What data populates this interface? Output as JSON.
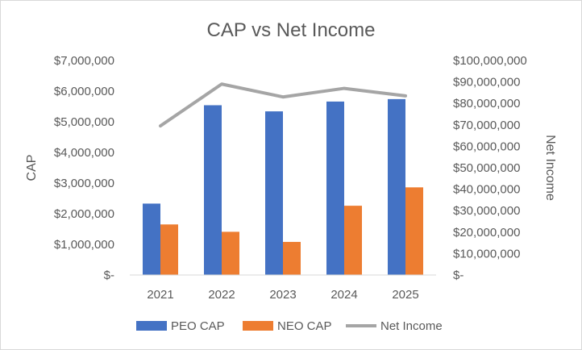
{
  "chart_data": {
    "type": "bar",
    "title": "CAP vs Net Income",
    "categories": [
      "2021",
      "2022",
      "2023",
      "2024",
      "2025"
    ],
    "series": [
      {
        "name": "PEO CAP",
        "kind": "bar",
        "axis": "left",
        "color": "#4472C4",
        "values": [
          2330000,
          5540000,
          5340000,
          5660000,
          5740000
        ]
      },
      {
        "name": "NEO CAP",
        "kind": "bar",
        "axis": "left",
        "color": "#ED7D31",
        "values": [
          1650000,
          1410000,
          1080000,
          2260000,
          2860000
        ]
      },
      {
        "name": "Net Income",
        "kind": "line",
        "axis": "right",
        "color": "#A5A5A5",
        "values": [
          69500000,
          89000000,
          83000000,
          87000000,
          83500000
        ]
      }
    ],
    "ylabel": "CAP",
    "y2label": "Net Income",
    "ylim": [
      0,
      7000000
    ],
    "y2lim": [
      0,
      100000000
    ],
    "yticks": [
      "$-",
      "$1,000,000",
      "$2,000,000",
      "$3,000,000",
      "$4,000,000",
      "$5,000,000",
      "$6,000,000",
      "$7,000,000"
    ],
    "y2ticks": [
      "$-",
      "$10,000,000",
      "$20,000,000",
      "$30,000,000",
      "$40,000,000",
      "$50,000,000",
      "$60,000,000",
      "$70,000,000",
      "$80,000,000",
      "$90,000,000",
      "$100,000,000"
    ],
    "legend_position": "bottom",
    "grid": false
  }
}
